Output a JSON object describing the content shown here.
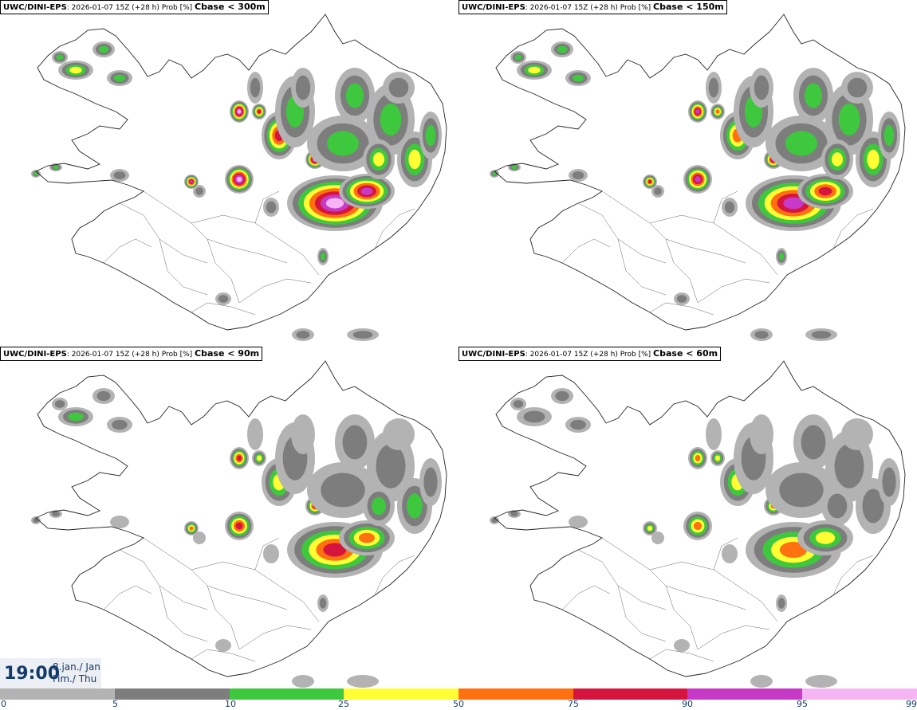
{
  "panels": [
    {
      "model": "UWC/DINI-EPS",
      "meta": ": 2026-01-07 15Z (+28 h) Prob [%] ",
      "threshold": "Cbase < 300m",
      "intensity": 1.0
    },
    {
      "model": "UWC/DINI-EPS",
      "meta": ": 2026-01-07 15Z (+28 h) Prob [%] ",
      "threshold": "Cbase < 150m",
      "intensity": 0.88
    },
    {
      "model": "UWC/DINI-EPS",
      "meta": ": 2026-01-07 15Z (+28 h) Prob [%] ",
      "threshold": "Cbase < 90m",
      "intensity": 0.72
    },
    {
      "model": "UWC/DINI-EPS",
      "meta": ": 2026-01-07 15Z (+28 h) Prob [%] ",
      "threshold": "Cbase < 60m",
      "intensity": 0.6
    }
  ],
  "time": {
    "clock": "19:00",
    "date": "8.jan./ Jan",
    "day": "Fim./ Thu"
  },
  "legend": {
    "ticks": [
      "0",
      "5",
      "10",
      "25",
      "50",
      "75",
      "90",
      "95",
      "99"
    ],
    "colors": [
      "#ffffff",
      "#b3b3b3",
      "#7d7d7d",
      "#3ec83e",
      "#ffff33",
      "#ff7010",
      "#d6153e",
      "#c73ac8",
      "#f5b4f2"
    ]
  }
}
